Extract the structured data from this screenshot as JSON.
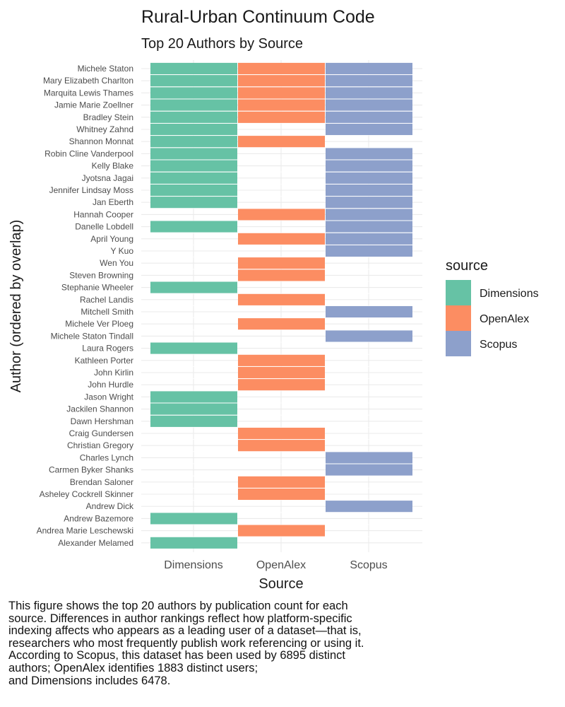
{
  "chart_data": {
    "type": "heatmap",
    "title": "Rural-Urban Continuum Code",
    "subtitle": "Top 20 Authors by Source",
    "xlabel": "Source",
    "ylabel": "Author (ordered by overlap)",
    "categories": [
      "Dimensions",
      "OpenAlex",
      "Scopus"
    ],
    "legend": {
      "title": "source",
      "position": "right",
      "entries": [
        {
          "label": "Dimensions",
          "color": "#66C2A5"
        },
        {
          "label": "OpenAlex",
          "color": "#FC8D62"
        },
        {
          "label": "Scopus",
          "color": "#8DA0CB"
        }
      ]
    },
    "authors": [
      {
        "name": "Michele Staton",
        "sources": [
          "Dimensions",
          "OpenAlex",
          "Scopus"
        ]
      },
      {
        "name": "Mary Elizabeth Charlton",
        "sources": [
          "Dimensions",
          "OpenAlex",
          "Scopus"
        ]
      },
      {
        "name": "Marquita Lewis Thames",
        "sources": [
          "Dimensions",
          "OpenAlex",
          "Scopus"
        ]
      },
      {
        "name": "Jamie Marie Zoellner",
        "sources": [
          "Dimensions",
          "OpenAlex",
          "Scopus"
        ]
      },
      {
        "name": "Bradley Stein",
        "sources": [
          "Dimensions",
          "OpenAlex",
          "Scopus"
        ]
      },
      {
        "name": "Whitney Zahnd",
        "sources": [
          "Dimensions",
          "Scopus"
        ]
      },
      {
        "name": "Shannon Monnat",
        "sources": [
          "Dimensions",
          "OpenAlex"
        ]
      },
      {
        "name": "Robin Cline Vanderpool",
        "sources": [
          "Dimensions",
          "Scopus"
        ]
      },
      {
        "name": "Kelly Blake",
        "sources": [
          "Dimensions",
          "Scopus"
        ]
      },
      {
        "name": "Jyotsna Jagai",
        "sources": [
          "Dimensions",
          "Scopus"
        ]
      },
      {
        "name": "Jennifer Lindsay Moss",
        "sources": [
          "Dimensions",
          "Scopus"
        ]
      },
      {
        "name": "Jan Eberth",
        "sources": [
          "Dimensions",
          "Scopus"
        ]
      },
      {
        "name": "Hannah Cooper",
        "sources": [
          "OpenAlex",
          "Scopus"
        ]
      },
      {
        "name": "Danelle Lobdell",
        "sources": [
          "Dimensions",
          "Scopus"
        ]
      },
      {
        "name": "April Young",
        "sources": [
          "OpenAlex",
          "Scopus"
        ]
      },
      {
        "name": "Y Kuo",
        "sources": [
          "Scopus"
        ]
      },
      {
        "name": "Wen You",
        "sources": [
          "OpenAlex"
        ]
      },
      {
        "name": "Steven Browning",
        "sources": [
          "OpenAlex"
        ]
      },
      {
        "name": "Stephanie Wheeler",
        "sources": [
          "Dimensions"
        ]
      },
      {
        "name": "Rachel Landis",
        "sources": [
          "OpenAlex"
        ]
      },
      {
        "name": "Mitchell Smith",
        "sources": [
          "Scopus"
        ]
      },
      {
        "name": "Michele Ver Ploeg",
        "sources": [
          "OpenAlex"
        ]
      },
      {
        "name": "Michele Staton Tindall",
        "sources": [
          "Scopus"
        ]
      },
      {
        "name": "Laura Rogers",
        "sources": [
          "Dimensions"
        ]
      },
      {
        "name": "Kathleen Porter",
        "sources": [
          "OpenAlex"
        ]
      },
      {
        "name": "John Kirlin",
        "sources": [
          "OpenAlex"
        ]
      },
      {
        "name": "John Hurdle",
        "sources": [
          "OpenAlex"
        ]
      },
      {
        "name": "Jason Wright",
        "sources": [
          "Dimensions"
        ]
      },
      {
        "name": "Jackilen Shannon",
        "sources": [
          "Dimensions"
        ]
      },
      {
        "name": "Dawn Hershman",
        "sources": [
          "Dimensions"
        ]
      },
      {
        "name": "Craig Gundersen",
        "sources": [
          "OpenAlex"
        ]
      },
      {
        "name": "Christian Gregory",
        "sources": [
          "OpenAlex"
        ]
      },
      {
        "name": "Charles Lynch",
        "sources": [
          "Scopus"
        ]
      },
      {
        "name": "Carmen Byker Shanks",
        "sources": [
          "Scopus"
        ]
      },
      {
        "name": "Brendan Saloner",
        "sources": [
          "OpenAlex"
        ]
      },
      {
        "name": "Asheley Cockrell Skinner",
        "sources": [
          "OpenAlex"
        ]
      },
      {
        "name": "Andrew Dick",
        "sources": [
          "Scopus"
        ]
      },
      {
        "name": "Andrew Bazemore",
        "sources": [
          "Dimensions"
        ]
      },
      {
        "name": "Andrea Marie Leschewski",
        "sources": [
          "OpenAlex"
        ]
      },
      {
        "name": "Alexander Melamed",
        "sources": [
          "Dimensions"
        ]
      }
    ]
  },
  "caption": {
    "lines": [
      "This figure shows the top 20 authors by publication count for each",
      "source. Differences in author rankings reflect how platform-specific",
      "indexing affects who appears as a leading user of a dataset—that is,",
      "researchers who most frequently publish work referencing or using it.",
      "According to Scopus, this dataset has been used by 6895 distinct",
      "authors; OpenAlex identifies 1883 distinct users;",
      "and Dimensions includes 6478."
    ]
  }
}
